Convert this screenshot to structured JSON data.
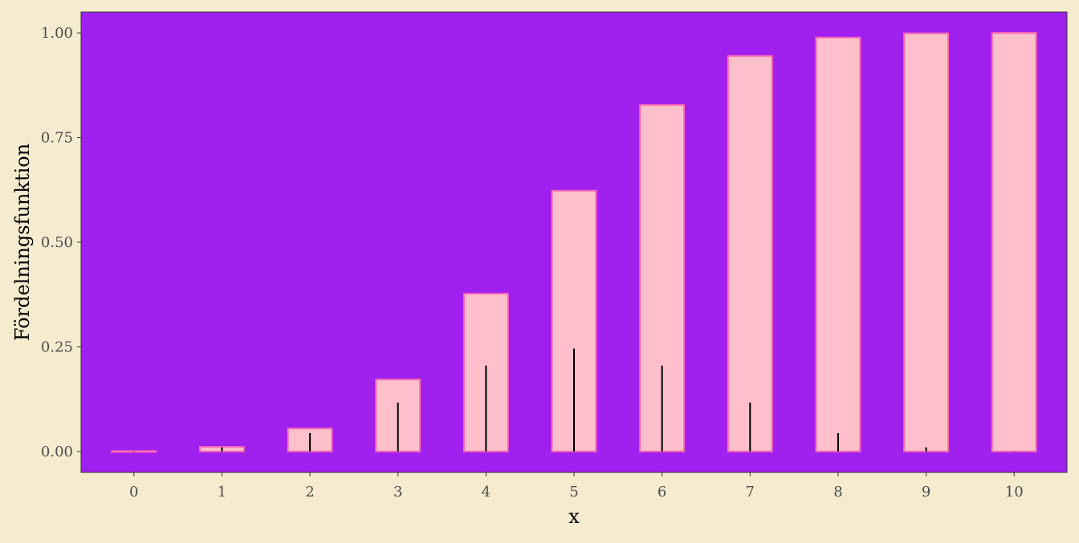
{
  "colors": {
    "page_background": "#F5EBCF",
    "panel_background": "#A020F0",
    "bar_fill": "#FFC0CB",
    "bar_outline": "#FF69B4",
    "spike": "#000000",
    "tick_label": "#4D4D4D",
    "axis_title": "#000000"
  },
  "chart_data": {
    "type": "bar",
    "xlabel": "x",
    "ylabel": "Fördelningsfunktion",
    "x": [
      0,
      1,
      2,
      3,
      4,
      5,
      6,
      7,
      8,
      9,
      10
    ],
    "x_tick_labels": [
      "0",
      "1",
      "2",
      "3",
      "4",
      "5",
      "6",
      "7",
      "8",
      "9",
      "10"
    ],
    "ylim": [
      -0.05,
      1.05
    ],
    "y_ticks": [
      0,
      0.25,
      0.5,
      0.75,
      1
    ],
    "y_tick_labels": [
      "0.00",
      "0.25",
      "0.50",
      "0.75",
      "1.00"
    ],
    "grid": false,
    "series": [
      {
        "kind": "bar",
        "values": [
          0.001,
          0.011,
          0.055,
          0.172,
          0.377,
          0.623,
          0.828,
          0.945,
          0.989,
          0.999,
          1.0
        ]
      },
      {
        "kind": "spike",
        "values": [
          0.001,
          0.01,
          0.044,
          0.117,
          0.205,
          0.246,
          0.205,
          0.117,
          0.044,
          0.01,
          0.001
        ]
      }
    ]
  }
}
